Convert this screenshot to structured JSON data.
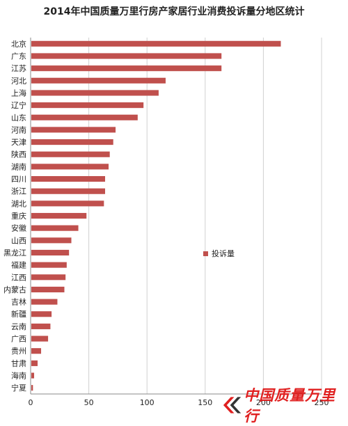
{
  "title": "2014年中国质量万里行房产家居行业消费投诉量分地区统计",
  "legend_label": "投诉量",
  "watermark_text": "中国质量万里行",
  "colors": {
    "bar": "#c0504d",
    "watermark": "#e02020"
  },
  "chart_data": {
    "type": "bar",
    "orientation": "horizontal",
    "categories": [
      "北京",
      "广东",
      "江苏",
      "河北",
      "上海",
      "辽宁",
      "山东",
      "河南",
      "天津",
      "陕西",
      "湖南",
      "四川",
      "浙江",
      "湖北",
      "重庆",
      "安徽",
      "山西",
      "黑龙江",
      "福建",
      "江西",
      "内蒙古",
      "吉林",
      "新疆",
      "云南",
      "广西",
      "贵州",
      "甘肃",
      "海南",
      "宁夏"
    ],
    "series": [
      {
        "name": "投诉量",
        "values": [
          215,
          164,
          164,
          116,
          110,
          97,
          92,
          73,
          71,
          68,
          67,
          64,
          64,
          63,
          48,
          41,
          35,
          33,
          31,
          30,
          29,
          23,
          18,
          17,
          15,
          9,
          6,
          3,
          2
        ]
      }
    ],
    "xlim": [
      0,
      250
    ],
    "xticks": [
      "0",
      "50",
      "100",
      "150",
      "200",
      "250"
    ],
    "grid": true,
    "legend_position": "right"
  }
}
